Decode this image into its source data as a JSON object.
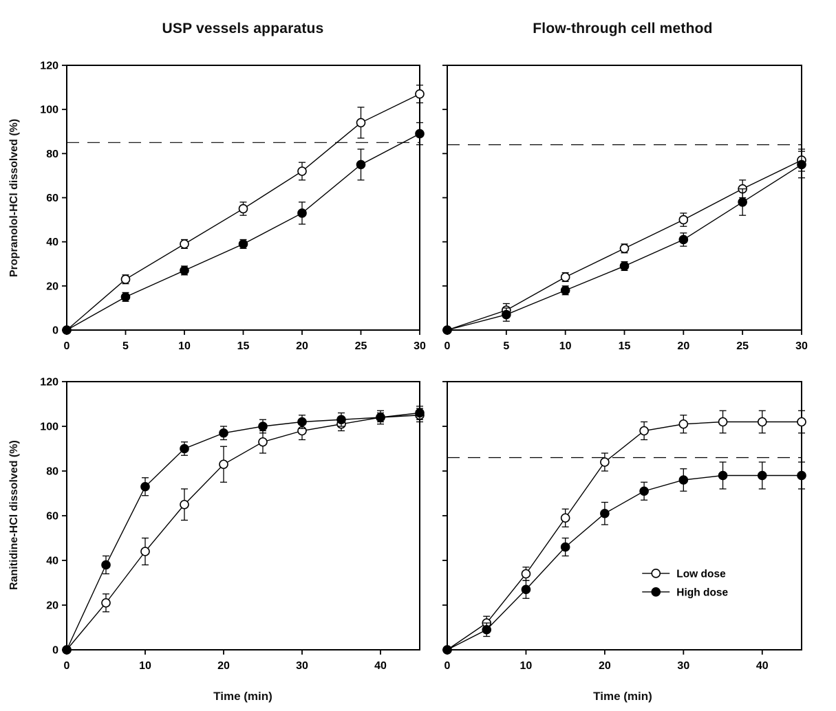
{
  "figure": {
    "left_column_title": "USP vessels apparatus",
    "right_column_title": "Flow-through cell method",
    "top_row_y_label": "Propranolol-HCl dissolved (%)",
    "bottom_row_y_label": "Ranitidine-HCl dissolved (%)",
    "x_axis_label": "Time (min)",
    "line_color": "#000000",
    "marker_open_fill": "#ffffff",
    "marker_filled_fill": "#000000",
    "background_color": "#ffffff"
  },
  "legend": {
    "items": [
      {
        "label": "Low dose",
        "marker": "open"
      },
      {
        "label": "High dose",
        "marker": "filled"
      }
    ]
  },
  "chart_data": [
    {
      "id": "propranolol-usp",
      "type": "line",
      "title": "USP vessels apparatus",
      "xlabel": "Time (min)",
      "ylabel": "Propranolol-HCl dissolved (%)",
      "xlim": [
        0,
        30
      ],
      "xticks": [
        0,
        5,
        10,
        15,
        20,
        25,
        30
      ],
      "ylim": [
        0,
        120
      ],
      "yticks": [
        0,
        20,
        40,
        60,
        80,
        100,
        120
      ],
      "show_y_tick_labels": true,
      "reference_line_y": 85,
      "legend": false,
      "series": [
        {
          "name": "Low dose",
          "marker": "open",
          "x": [
            0,
            5,
            10,
            15,
            20,
            25,
            30
          ],
          "y": [
            0,
            23,
            39,
            55,
            72,
            94,
            107
          ],
          "yerr": [
            0,
            2,
            2,
            3,
            4,
            7,
            4
          ]
        },
        {
          "name": "High dose",
          "marker": "filled",
          "x": [
            0,
            5,
            10,
            15,
            20,
            25,
            30
          ],
          "y": [
            0,
            15,
            27,
            39,
            53,
            75,
            89
          ],
          "yerr": [
            0,
            2,
            2,
            2,
            5,
            7,
            5
          ]
        }
      ]
    },
    {
      "id": "propranolol-flow-through",
      "type": "line",
      "title": "Flow-through cell method",
      "xlabel": "Time (min)",
      "ylabel": "Propranolol-HCl dissolved (%)",
      "xlim": [
        0,
        30
      ],
      "xticks": [
        0,
        5,
        10,
        15,
        20,
        25,
        30
      ],
      "ylim": [
        0,
        120
      ],
      "yticks": [
        0,
        20,
        40,
        60,
        80,
        100,
        120
      ],
      "show_y_tick_labels": false,
      "reference_line_y": 84,
      "legend": false,
      "series": [
        {
          "name": "Low dose",
          "marker": "open",
          "x": [
            0,
            5,
            10,
            15,
            20,
            25,
            30
          ],
          "y": [
            0,
            9,
            24,
            37,
            50,
            64,
            77
          ],
          "yerr": [
            1,
            3,
            2,
            2,
            3,
            4,
            5
          ]
        },
        {
          "name": "High dose",
          "marker": "filled",
          "x": [
            0,
            5,
            10,
            15,
            20,
            25,
            30
          ],
          "y": [
            0,
            7,
            18,
            29,
            41,
            58,
            75
          ],
          "yerr": [
            1,
            3,
            2,
            2,
            3,
            6,
            6
          ]
        }
      ]
    },
    {
      "id": "ranitidine-usp",
      "type": "line",
      "title": "USP vessels apparatus",
      "xlabel": "Time (min)",
      "ylabel": "Ranitidine-HCl dissolved (%)",
      "xlim": [
        0,
        45
      ],
      "xticks": [
        0,
        10,
        20,
        30,
        40
      ],
      "ylim": [
        0,
        120
      ],
      "yticks": [
        0,
        20,
        40,
        60,
        80,
        100,
        120
      ],
      "show_y_tick_labels": true,
      "reference_line_y": null,
      "legend": false,
      "series": [
        {
          "name": "Low dose",
          "marker": "open",
          "x": [
            0,
            5,
            10,
            15,
            20,
            25,
            30,
            35,
            40,
            45
          ],
          "y": [
            0,
            21,
            44,
            65,
            83,
            93,
            98,
            101,
            104,
            105
          ],
          "yerr": [
            0,
            4,
            6,
            7,
            8,
            5,
            4,
            3,
            3,
            3
          ]
        },
        {
          "name": "High dose",
          "marker": "filled",
          "x": [
            0,
            5,
            10,
            15,
            20,
            25,
            30,
            35,
            40,
            45
          ],
          "y": [
            0,
            38,
            73,
            90,
            97,
            100,
            102,
            103,
            104,
            106
          ],
          "yerr": [
            0,
            4,
            4,
            3,
            3,
            3,
            3,
            3,
            2,
            3
          ]
        }
      ]
    },
    {
      "id": "ranitidine-flow-through",
      "type": "line",
      "title": "Flow-through cell method",
      "xlabel": "Time (min)",
      "ylabel": "Ranitidine-HCl dissolved (%)",
      "xlim": [
        0,
        45
      ],
      "xticks": [
        0,
        10,
        20,
        30,
        40
      ],
      "ylim": [
        0,
        120
      ],
      "yticks": [
        0,
        20,
        40,
        60,
        80,
        100,
        120
      ],
      "show_y_tick_labels": false,
      "reference_line_y": 86,
      "legend": true,
      "series": [
        {
          "name": "Low dose",
          "marker": "open",
          "x": [
            0,
            5,
            10,
            15,
            20,
            25,
            30,
            35,
            40,
            45
          ],
          "y": [
            0,
            12,
            34,
            59,
            84,
            98,
            101,
            102,
            102,
            102
          ],
          "yerr": [
            0,
            3,
            3,
            4,
            4,
            4,
            4,
            5,
            5,
            5
          ]
        },
        {
          "name": "High dose",
          "marker": "filled",
          "x": [
            0,
            5,
            10,
            15,
            20,
            25,
            30,
            35,
            40,
            45
          ],
          "y": [
            0,
            9,
            27,
            46,
            61,
            71,
            76,
            78,
            78,
            78
          ],
          "yerr": [
            0,
            3,
            4,
            4,
            5,
            4,
            5,
            6,
            6,
            6
          ]
        }
      ]
    }
  ]
}
